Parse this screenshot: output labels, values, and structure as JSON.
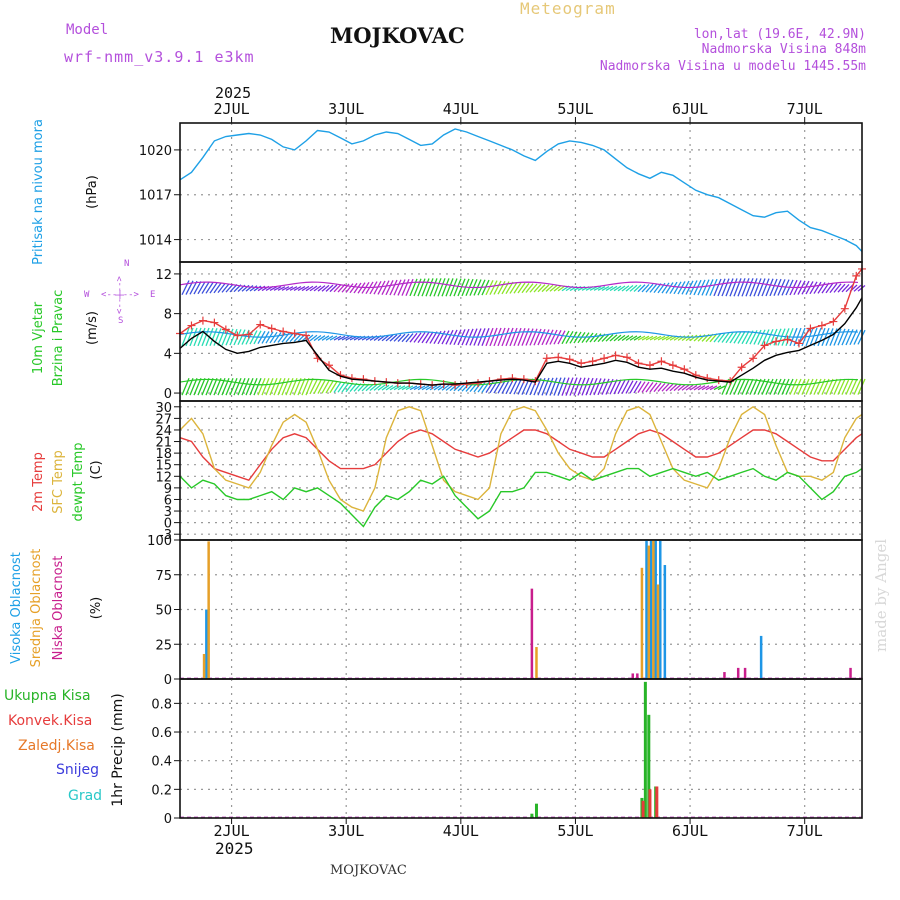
{
  "header": {
    "model_label": "Model",
    "model_name": "wrf-nmm_v3.9.1 e3km",
    "station": "MOJKOVAC",
    "product": "Meteogram",
    "coords": "lon,lat (19.6E, 42.9N)",
    "elevation": "Nadmorska Visina 848m",
    "model_elevation": "Nadmorska Visina u modelu 1445.55m",
    "year_top": "2025",
    "year_bottom": "2025",
    "footer_station": "MOJKOVAC",
    "credit": "made by Angel"
  },
  "colors": {
    "pressure": "#1ea0e6",
    "temp2m": "#e63c3c",
    "sfc": "#dcb43c",
    "dew": "#28c828",
    "wind_gust": "#e63c3c",
    "wind_mean": "#000000",
    "high_cloud": "#1e96e6",
    "mid_cloud": "#e6a028",
    "low_cloud": "#c81e8c",
    "rain": "#28b428",
    "convective": "#e63c3c",
    "freezing": "#e67828",
    "snow": "#3c3cdc",
    "graupel": "#28c8c8",
    "label_purple": "#b450dc",
    "label_gold": "#e6c878"
  },
  "chart_data": [
    {
      "type": "line",
      "id": "pressure",
      "ylabel": "Pritisak na nivou mora",
      "unit": "(hPa)",
      "yticks": [
        1014,
        1017,
        1020
      ],
      "ylim": [
        1012.5,
        1021.8
      ],
      "xlim": [
        1.55,
        7.5
      ],
      "xticks": [
        2,
        3,
        4,
        5,
        6,
        7
      ],
      "xticklabels": [
        "2JUL",
        "3JUL",
        "4JUL",
        "5JUL",
        "6JUL",
        "7JUL"
      ],
      "series": [
        {
          "name": "MSLP",
          "x": [
            1.55,
            1.65,
            1.75,
            1.85,
            1.95,
            2.05,
            2.15,
            2.25,
            2.35,
            2.45,
            2.55,
            2.65,
            2.75,
            2.85,
            2.95,
            3.05,
            3.15,
            3.25,
            3.35,
            3.45,
            3.55,
            3.65,
            3.75,
            3.85,
            3.95,
            4.05,
            4.15,
            4.25,
            4.35,
            4.45,
            4.55,
            4.65,
            4.75,
            4.85,
            4.95,
            5.05,
            5.15,
            5.25,
            5.35,
            5.45,
            5.55,
            5.65,
            5.75,
            5.85,
            5.95,
            6.05,
            6.15,
            6.25,
            6.35,
            6.45,
            6.55,
            6.65,
            6.75,
            6.85,
            6.95,
            7.05,
            7.15,
            7.25,
            7.35,
            7.45,
            7.5
          ],
          "values": [
            1018.0,
            1018.5,
            1019.5,
            1020.6,
            1020.9,
            1021.0,
            1021.1,
            1021.0,
            1020.7,
            1020.2,
            1020.0,
            1020.6,
            1021.3,
            1021.2,
            1020.8,
            1020.4,
            1020.6,
            1021.0,
            1021.2,
            1021.1,
            1020.7,
            1020.3,
            1020.4,
            1021.0,
            1021.4,
            1021.2,
            1020.9,
            1020.6,
            1020.3,
            1020.0,
            1019.6,
            1019.3,
            1019.9,
            1020.4,
            1020.6,
            1020.5,
            1020.3,
            1020.0,
            1019.4,
            1018.8,
            1018.4,
            1018.1,
            1018.5,
            1018.3,
            1017.8,
            1017.3,
            1017.0,
            1016.8,
            1016.4,
            1016.0,
            1015.6,
            1015.5,
            1015.8,
            1015.9,
            1015.3,
            1014.8,
            1014.6,
            1014.3,
            1014.0,
            1013.6,
            1013.2
          ]
        }
      ]
    },
    {
      "type": "line",
      "id": "wind",
      "ylabel": "10m Vjetar",
      "ylabel2": "Brzina i Pravac",
      "unit": "(m/s)",
      "compass": {
        "north": "N",
        "west": "W",
        "east": "E",
        "south": "S",
        "arrows": "<--|-->"
      },
      "yticks": [
        0,
        4,
        8,
        12
      ],
      "ylim": [
        -0.8,
        13.2
      ],
      "xlim": [
        1.55,
        7.5
      ],
      "barb_rows": [
        0.5,
        5.5,
        10.5
      ],
      "series": [
        {
          "name": "Gust",
          "marker": "+",
          "x": [
            1.55,
            1.65,
            1.75,
            1.85,
            1.95,
            2.05,
            2.15,
            2.25,
            2.35,
            2.45,
            2.55,
            2.65,
            2.75,
            2.85,
            2.95,
            3.05,
            3.15,
            3.25,
            3.35,
            3.45,
            3.55,
            3.65,
            3.75,
            3.85,
            3.95,
            4.05,
            4.15,
            4.25,
            4.35,
            4.45,
            4.55,
            4.65,
            4.75,
            4.85,
            4.95,
            5.05,
            5.15,
            5.25,
            5.35,
            5.45,
            5.55,
            5.65,
            5.75,
            5.85,
            5.95,
            6.05,
            6.15,
            6.25,
            6.35,
            6.45,
            6.55,
            6.65,
            6.75,
            6.85,
            6.95,
            7.05,
            7.15,
            7.25,
            7.35,
            7.45,
            7.5
          ],
          "values": [
            6.0,
            6.8,
            7.3,
            7.1,
            6.4,
            5.8,
            5.9,
            6.9,
            6.5,
            6.2,
            6.0,
            5.8,
            3.5,
            2.8,
            1.8,
            1.5,
            1.4,
            1.2,
            1.1,
            1.0,
            1.0,
            0.9,
            0.8,
            0.9,
            0.8,
            0.9,
            1.0,
            1.2,
            1.4,
            1.5,
            1.4,
            1.2,
            3.5,
            3.6,
            3.4,
            3.0,
            3.2,
            3.5,
            3.8,
            3.6,
            3.0,
            2.8,
            3.2,
            2.8,
            2.4,
            1.8,
            1.5,
            1.3,
            1.2,
            2.6,
            3.5,
            4.8,
            5.2,
            5.4,
            5.0,
            6.5,
            6.8,
            7.2,
            8.5,
            11.8,
            12.5
          ]
        },
        {
          "name": "Mean",
          "marker": "none",
          "x": [
            1.55,
            1.65,
            1.75,
            1.85,
            1.95,
            2.05,
            2.15,
            2.25,
            2.35,
            2.45,
            2.55,
            2.65,
            2.75,
            2.85,
            2.95,
            3.05,
            3.15,
            3.25,
            3.35,
            3.45,
            3.55,
            3.65,
            3.75,
            3.85,
            3.95,
            4.05,
            4.15,
            4.25,
            4.35,
            4.45,
            4.55,
            4.65,
            4.75,
            4.85,
            4.95,
            5.05,
            5.15,
            5.25,
            5.35,
            5.45,
            5.55,
            5.65,
            5.75,
            5.85,
            5.95,
            6.05,
            6.15,
            6.25,
            6.35,
            6.45,
            6.55,
            6.65,
            6.75,
            6.85,
            6.95,
            7.05,
            7.15,
            7.25,
            7.35,
            7.45,
            7.5
          ],
          "values": [
            4.5,
            5.5,
            6.2,
            5.2,
            4.4,
            4.0,
            4.2,
            4.6,
            4.8,
            5.0,
            5.1,
            5.3,
            3.8,
            2.3,
            1.7,
            1.4,
            1.3,
            1.2,
            1.1,
            1.0,
            1.0,
            0.9,
            0.8,
            0.9,
            0.9,
            1.0,
            1.1,
            1.2,
            1.3,
            1.4,
            1.3,
            1.1,
            3.0,
            3.2,
            3.0,
            2.6,
            2.8,
            3.0,
            3.3,
            3.1,
            2.6,
            2.4,
            2.5,
            2.2,
            2.0,
            1.6,
            1.3,
            1.2,
            1.1,
            1.8,
            2.5,
            3.3,
            3.8,
            4.1,
            4.3,
            4.8,
            5.3,
            5.9,
            7.0,
            8.6,
            9.6
          ]
        }
      ]
    },
    {
      "type": "line",
      "id": "temperature",
      "ylabel": "2m Temp",
      "ylabel2": "SFC Temp",
      "ylabel3": "dewpt Temp",
      "unit": "(C)",
      "yticks": [
        -3,
        0,
        3,
        6,
        9,
        12,
        15,
        18,
        21,
        24,
        27,
        30
      ],
      "ylim": [
        -4.5,
        31.5
      ],
      "xlim": [
        1.55,
        7.5
      ],
      "series": [
        {
          "name": "2m Temp",
          "x": [
            1.55,
            1.65,
            1.75,
            1.85,
            1.95,
            2.05,
            2.15,
            2.25,
            2.35,
            2.45,
            2.55,
            2.65,
            2.75,
            2.85,
            2.95,
            3.05,
            3.15,
            3.25,
            3.35,
            3.45,
            3.55,
            3.65,
            3.75,
            3.85,
            3.95,
            4.05,
            4.15,
            4.25,
            4.35,
            4.45,
            4.55,
            4.65,
            4.75,
            4.85,
            4.95,
            5.05,
            5.15,
            5.25,
            5.35,
            5.45,
            5.55,
            5.65,
            5.75,
            5.85,
            5.95,
            6.05,
            6.15,
            6.25,
            6.35,
            6.45,
            6.55,
            6.65,
            6.75,
            6.85,
            6.95,
            7.05,
            7.15,
            7.25,
            7.35,
            7.45,
            7.5
          ],
          "values": [
            22,
            21,
            17,
            14,
            13,
            12,
            11,
            15,
            19,
            22,
            23,
            22,
            19,
            16,
            14,
            14,
            14,
            15,
            18,
            21,
            23,
            24,
            23,
            21,
            19,
            18,
            17,
            18,
            20,
            22,
            24,
            24,
            23,
            21,
            19,
            18,
            17,
            17,
            19,
            21,
            23,
            24,
            23,
            21,
            19,
            17,
            17,
            18,
            20,
            22,
            24,
            24,
            23,
            21,
            19,
            17,
            16,
            16,
            19,
            22,
            23
          ]
        },
        {
          "name": "SFC Temp",
          "x": [
            1.55,
            1.65,
            1.75,
            1.85,
            1.95,
            2.05,
            2.15,
            2.25,
            2.35,
            2.45,
            2.55,
            2.65,
            2.75,
            2.85,
            2.95,
            3.05,
            3.15,
            3.25,
            3.35,
            3.45,
            3.55,
            3.65,
            3.75,
            3.85,
            3.95,
            4.05,
            4.15,
            4.25,
            4.35,
            4.45,
            4.55,
            4.65,
            4.75,
            4.85,
            4.95,
            5.05,
            5.15,
            5.25,
            5.35,
            5.45,
            5.55,
            5.65,
            5.75,
            5.85,
            5.95,
            6.05,
            6.15,
            6.25,
            6.35,
            6.45,
            6.55,
            6.65,
            6.75,
            6.85,
            6.95,
            7.05,
            7.15,
            7.25,
            7.35,
            7.45,
            7.5
          ],
          "values": [
            24,
            27,
            23,
            14,
            11,
            10,
            9,
            13,
            20,
            26,
            28,
            26,
            19,
            11,
            6,
            4,
            3,
            9,
            22,
            29,
            30,
            29,
            20,
            11,
            8,
            7,
            6,
            9,
            23,
            29,
            30,
            29,
            24,
            18,
            14,
            12,
            11,
            14,
            23,
            29,
            30,
            28,
            21,
            14,
            11,
            10,
            9,
            14,
            22,
            28,
            30,
            28,
            20,
            13,
            12,
            12,
            11,
            13,
            22,
            27,
            28
          ]
        },
        {
          "name": "Dewpt",
          "x": [
            1.55,
            1.65,
            1.75,
            1.85,
            1.95,
            2.05,
            2.15,
            2.25,
            2.35,
            2.45,
            2.55,
            2.65,
            2.75,
            2.85,
            2.95,
            3.05,
            3.15,
            3.25,
            3.35,
            3.45,
            3.55,
            3.65,
            3.75,
            3.85,
            3.95,
            4.05,
            4.15,
            4.25,
            4.35,
            4.45,
            4.55,
            4.65,
            4.75,
            4.85,
            4.95,
            5.05,
            5.15,
            5.25,
            5.35,
            5.45,
            5.55,
            5.65,
            5.75,
            5.85,
            5.95,
            6.05,
            6.15,
            6.25,
            6.35,
            6.45,
            6.55,
            6.65,
            6.75,
            6.85,
            6.95,
            7.05,
            7.15,
            7.25,
            7.35,
            7.45,
            7.5
          ],
          "values": [
            12,
            9,
            11,
            10,
            7,
            6,
            6,
            7,
            8,
            6,
            9,
            8,
            9,
            7,
            5,
            2,
            -1,
            4,
            7,
            6,
            8,
            11,
            10,
            12,
            7,
            4,
            1,
            3,
            8,
            8,
            9,
            13,
            13,
            12,
            11,
            13,
            11,
            12,
            13,
            14,
            14,
            12,
            13,
            14,
            13,
            12,
            13,
            11,
            12,
            13,
            14,
            12,
            11,
            13,
            12,
            9,
            6,
            8,
            12,
            13,
            14
          ]
        }
      ]
    },
    {
      "type": "bar",
      "id": "cloud",
      "ylabel": "Visoka Oblacnost",
      "ylabel2": "Srednja Oblacnost",
      "ylabel3": "Niska Oblacnost",
      "unit": "(%)",
      "yticks": [
        0,
        25,
        50,
        75,
        100
      ],
      "ylim": [
        0,
        100
      ],
      "xlim": [
        1.55,
        7.5
      ],
      "series": [
        {
          "name": "High",
          "x": [
            1.78,
            5.62,
            5.66,
            5.7,
            5.74,
            5.78,
            6.62
          ],
          "values": [
            50,
            100,
            100,
            100,
            100,
            82,
            31
          ]
        },
        {
          "name": "Mid",
          "x": [
            1.76,
            1.8,
            4.66,
            5.58,
            5.64,
            5.68,
            5.72
          ],
          "values": [
            18,
            99,
            23,
            80,
            96,
            100,
            68
          ]
        },
        {
          "name": "Low",
          "x": [
            4.62,
            5.5,
            5.54,
            6.3,
            6.42,
            6.48,
            7.4
          ],
          "values": [
            65,
            4,
            4,
            5,
            8,
            8,
            8
          ]
        }
      ]
    },
    {
      "type": "bar",
      "id": "precip",
      "ylabel": "1hr Precip (mm)",
      "legend": [
        "Ukupna Kisa",
        "Konvek.Kisa",
        "Zaledj.Kisa",
        "Snijeg",
        "Grad"
      ],
      "yticks": [
        0,
        0.2,
        0.4,
        0.6,
        0.8
      ],
      "ylim": [
        0,
        0.97
      ],
      "xlim": [
        1.55,
        7.5
      ],
      "series": [
        {
          "name": "Ukupna Kisa",
          "x": [
            4.62,
            4.66,
            5.58,
            5.61,
            5.64,
            5.7
          ],
          "values": [
            0.03,
            0.1,
            0.14,
            0.95,
            0.72,
            0.22
          ]
        },
        {
          "name": "Konvek.Kisa",
          "x": [
            5.59,
            5.65,
            5.71
          ],
          "values": [
            0.12,
            0.2,
            0.22
          ]
        }
      ]
    }
  ]
}
